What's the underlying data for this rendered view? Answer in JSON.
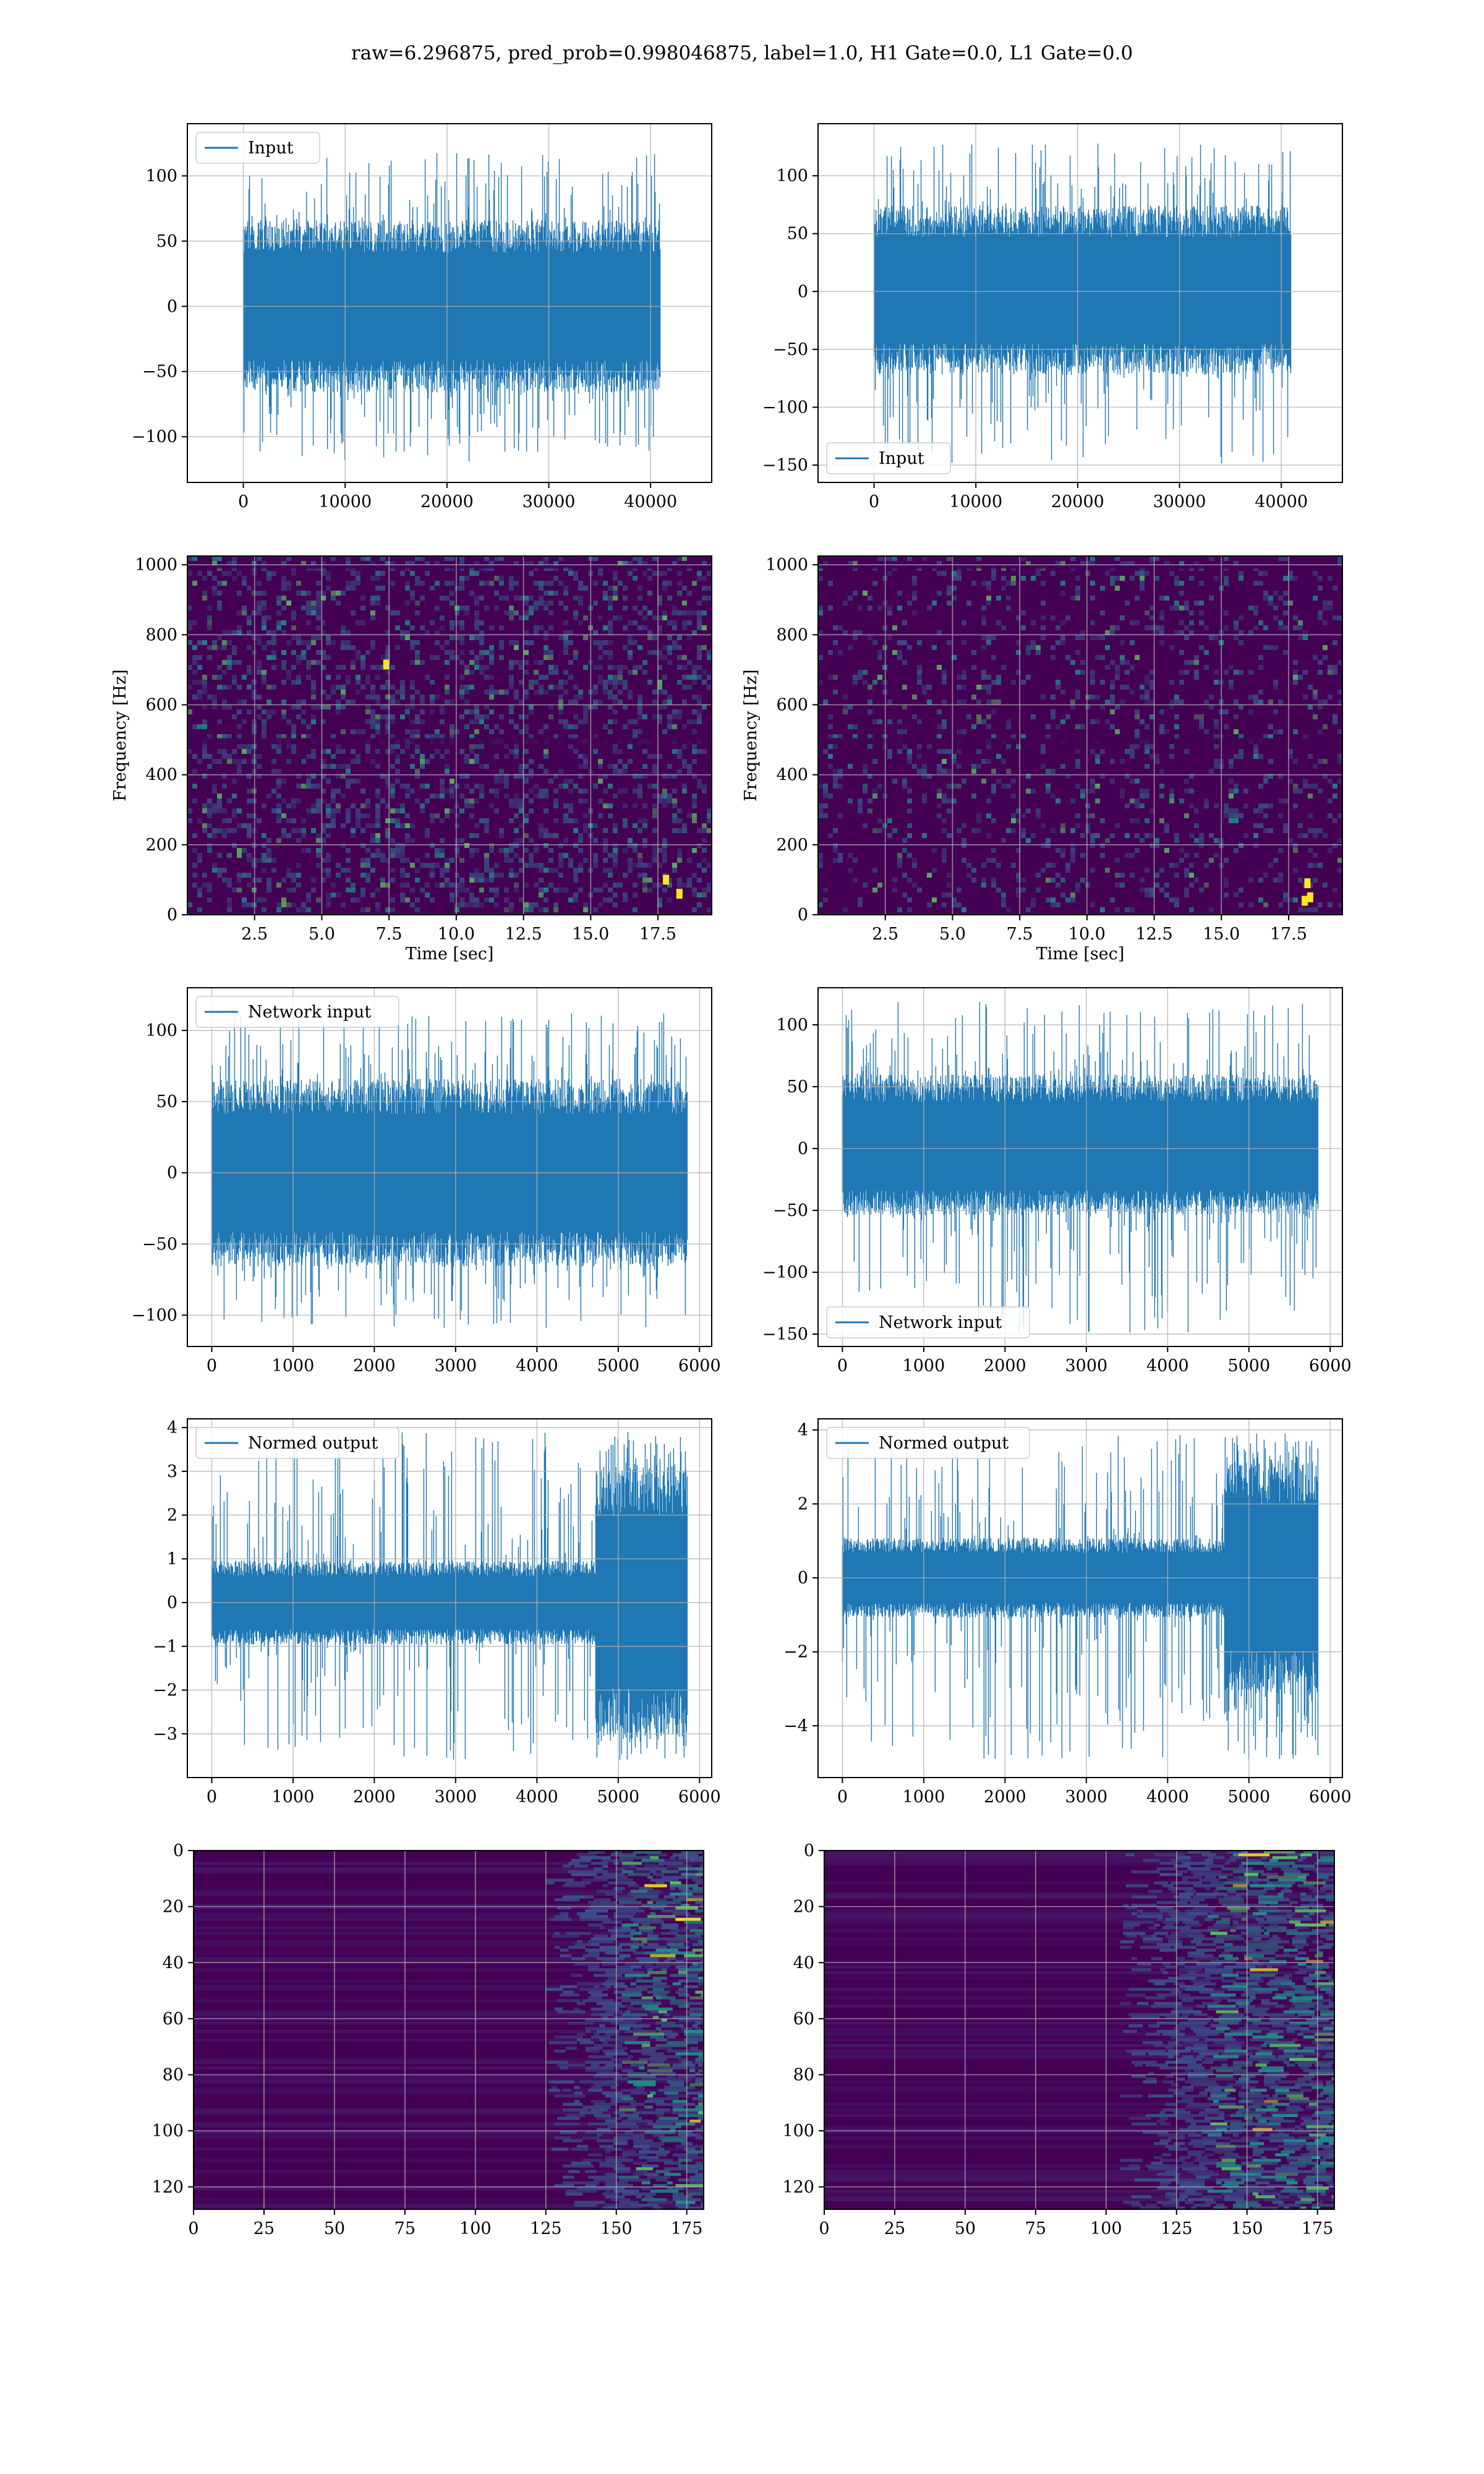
{
  "suptitle": "raw=6.296875, pred_prob=0.998046875, label=1.0, H1 Gate=0.0, L1 Gate=0.0",
  "colors": {
    "line": "#1f77b4",
    "grid": "#b0b0b0",
    "spec_bg": "#440154",
    "spec_low": "#3b528b",
    "spec_mid": "#21918c",
    "spec_high": "#5ec962",
    "spec_peak": "#fde725"
  },
  "chart_data": [
    {
      "id": "input-h1",
      "type": "line",
      "signal": "noise",
      "legend": "Input",
      "legend_loc": "upper-left",
      "xlim": [
        -5500,
        46000
      ],
      "ylim": [
        -135,
        140
      ],
      "xticks": [
        0,
        10000,
        20000,
        30000,
        40000
      ],
      "yticks": [
        -100,
        -50,
        0,
        50,
        100
      ],
      "n_samples": 40960,
      "x_end": 40960,
      "body_amplitude": [
        -55,
        55
      ],
      "spike_extent": [
        -120,
        118
      ],
      "xlabel": "",
      "ylabel": "",
      "grid": true
    },
    {
      "id": "input-l1",
      "type": "line",
      "signal": "noise",
      "legend": "Input",
      "legend_loc": "lower-left",
      "xlim": [
        -5500,
        46000
      ],
      "ylim": [
        -165,
        145
      ],
      "xticks": [
        0,
        10000,
        20000,
        30000,
        40000
      ],
      "yticks": [
        -150,
        -100,
        -50,
        0,
        50,
        100
      ],
      "n_samples": 40960,
      "x_end": 40960,
      "body_amplitude": [
        -60,
        62
      ],
      "spike_extent": [
        -150,
        128
      ],
      "xlabel": "",
      "ylabel": "",
      "grid": true
    },
    {
      "id": "qtransform-h1",
      "type": "heatmap",
      "variant": "qtransform",
      "xlim": [
        0,
        19.5
      ],
      "ylim": [
        0,
        1025
      ],
      "xticks": [
        2.5,
        5.0,
        7.5,
        10.0,
        12.5,
        15.0,
        17.5
      ],
      "yticks": [
        0,
        200,
        400,
        600,
        800,
        1000
      ],
      "xlabel": "Time [sec]",
      "ylabel": "Frequency [Hz]",
      "intensity": 0.55,
      "bright_spots": [
        [
          7.4,
          715
        ],
        [
          17.8,
          100
        ],
        [
          18.3,
          60
        ]
      ],
      "grid": true
    },
    {
      "id": "qtransform-l1",
      "type": "heatmap",
      "variant": "qtransform",
      "xlim": [
        0,
        19.5
      ],
      "ylim": [
        0,
        1025
      ],
      "xticks": [
        2.5,
        5.0,
        7.5,
        10.0,
        12.5,
        15.0,
        17.5
      ],
      "yticks": [
        0,
        200,
        400,
        600,
        800,
        1000
      ],
      "xlabel": "Time [sec]",
      "ylabel": "Frequency [Hz]",
      "intensity": 0.3,
      "bright_spots": [
        [
          18.3,
          50
        ],
        [
          18.2,
          90
        ],
        [
          18.1,
          40
        ]
      ],
      "grid": true
    },
    {
      "id": "network-input-h1",
      "type": "line",
      "signal": "noise",
      "legend": "Network input",
      "legend_loc": "upper-left",
      "xlim": [
        -300,
        6150
      ],
      "ylim": [
        -122,
        130
      ],
      "xticks": [
        0,
        1000,
        2000,
        3000,
        4000,
        5000,
        6000
      ],
      "yticks": [
        -100,
        -50,
        0,
        50,
        100
      ],
      "n_samples": 5850,
      "x_end": 5850,
      "body_amplitude": [
        -55,
        55
      ],
      "spike_extent": [
        -110,
        112
      ],
      "xlabel": "",
      "ylabel": "",
      "grid": true
    },
    {
      "id": "network-input-l1",
      "type": "line",
      "signal": "noise",
      "legend": "Network input",
      "legend_loc": "lower-left",
      "xlim": [
        -300,
        6150
      ],
      "ylim": [
        -160,
        130
      ],
      "xticks": [
        0,
        1000,
        2000,
        3000,
        4000,
        5000,
        6000
      ],
      "yticks": [
        -150,
        -100,
        -50,
        0,
        50,
        100
      ],
      "n_samples": 5850,
      "x_end": 5850,
      "body_amplitude": [
        -45,
        50
      ],
      "spike_extent": [
        -150,
        120
      ],
      "xlabel": "",
      "ylabel": "",
      "grid": true
    },
    {
      "id": "normed-output-h1",
      "type": "line",
      "signal": "burst",
      "legend": "Normed output",
      "legend_loc": "upper-left",
      "xlim": [
        -300,
        6150
      ],
      "ylim": [
        -4.0,
        4.2
      ],
      "xticks": [
        0,
        1000,
        2000,
        3000,
        4000,
        5000,
        6000
      ],
      "yticks": [
        -3,
        -2,
        -1,
        0,
        1,
        2,
        3,
        4
      ],
      "n_samples": 5850,
      "x_end": 5850,
      "body_amplitude": [
        -0.8,
        0.8
      ],
      "burst_start": 4720,
      "burst_amplitude": [
        -2.6,
        2.6
      ],
      "spike_extent": [
        -3.6,
        3.9
      ],
      "xlabel": "",
      "ylabel": "",
      "grid": true
    },
    {
      "id": "normed-output-l1",
      "type": "line",
      "signal": "burst",
      "legend": "Normed output",
      "legend_loc": "upper-left",
      "xlim": [
        -300,
        6150
      ],
      "ylim": [
        -5.4,
        4.3
      ],
      "xticks": [
        0,
        1000,
        2000,
        3000,
        4000,
        5000,
        6000
      ],
      "yticks": [
        -4,
        -2,
        0,
        2,
        4
      ],
      "n_samples": 5850,
      "x_end": 5850,
      "body_amplitude": [
        -0.9,
        0.9
      ],
      "burst_start": 4700,
      "burst_amplitude": [
        -2.6,
        2.6
      ],
      "spike_extent": [
        -4.9,
        3.9
      ],
      "xlabel": "",
      "ylabel": "",
      "grid": true
    },
    {
      "id": "features-h1",
      "type": "heatmap",
      "variant": "features",
      "inverted_y": true,
      "xlim": [
        0,
        181
      ],
      "ylim": [
        128,
        0
      ],
      "xticks": [
        0,
        25,
        50,
        75,
        100,
        125,
        150,
        175
      ],
      "yticks": [
        0,
        20,
        40,
        60,
        80,
        100,
        120
      ],
      "active_from": 125,
      "peak_from": 150,
      "n_rows": 128,
      "n_cols": 181,
      "xlabel": "",
      "ylabel": "",
      "grid": true
    },
    {
      "id": "features-l1",
      "type": "heatmap",
      "variant": "features",
      "inverted_y": true,
      "xlim": [
        0,
        181
      ],
      "ylim": [
        128,
        0
      ],
      "xticks": [
        0,
        25,
        50,
        75,
        100,
        125,
        150,
        175
      ],
      "yticks": [
        0,
        20,
        40,
        60,
        80,
        100,
        120
      ],
      "active_from": 105,
      "peak_from": 135,
      "n_rows": 128,
      "n_cols": 181,
      "xlabel": "",
      "ylabel": "",
      "grid": true
    }
  ]
}
